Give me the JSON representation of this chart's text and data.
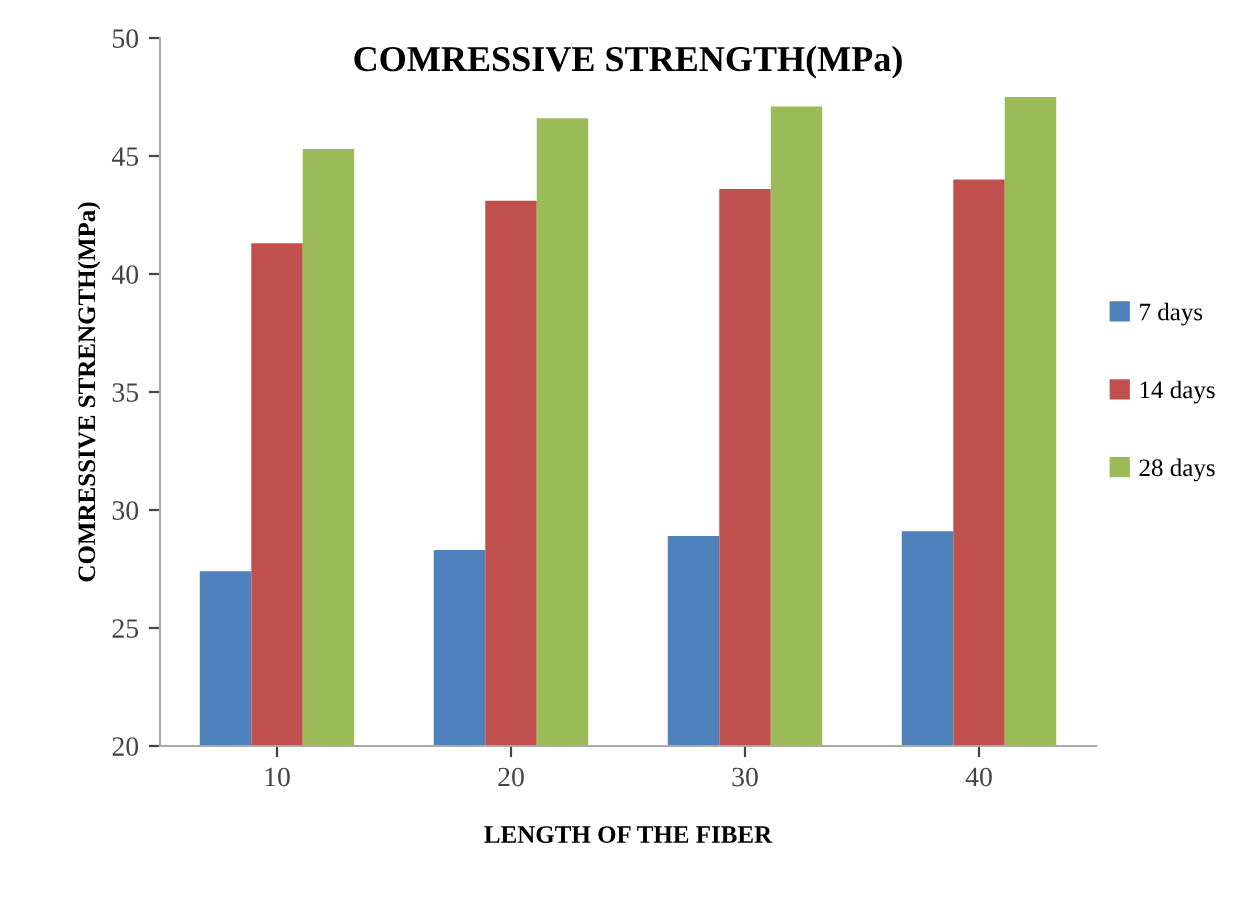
{
  "chart_data": {
    "type": "bar",
    "title": "COMRESSIVE STRENGTH(MPa)",
    "xlabel": "LENGTH OF THE FIBER",
    "ylabel": "COMRESSIVE STRENGTH(MPa)",
    "categories": [
      "10",
      "20",
      "30",
      "40"
    ],
    "series": [
      {
        "name": "7 days",
        "color": "#4f81bd",
        "values": [
          27.4,
          28.3,
          28.9,
          29.1
        ]
      },
      {
        "name": "14 days",
        "color": "#c0504d",
        "values": [
          41.3,
          43.1,
          43.6,
          44.0
        ]
      },
      {
        "name": "28 days",
        "color": "#9bbb59",
        "values": [
          45.3,
          46.6,
          47.1,
          47.5
        ]
      }
    ],
    "ylim": [
      20,
      50
    ],
    "yticks": [
      20,
      25,
      30,
      35,
      40,
      45,
      50
    ],
    "grid": false,
    "legend": "right"
  }
}
